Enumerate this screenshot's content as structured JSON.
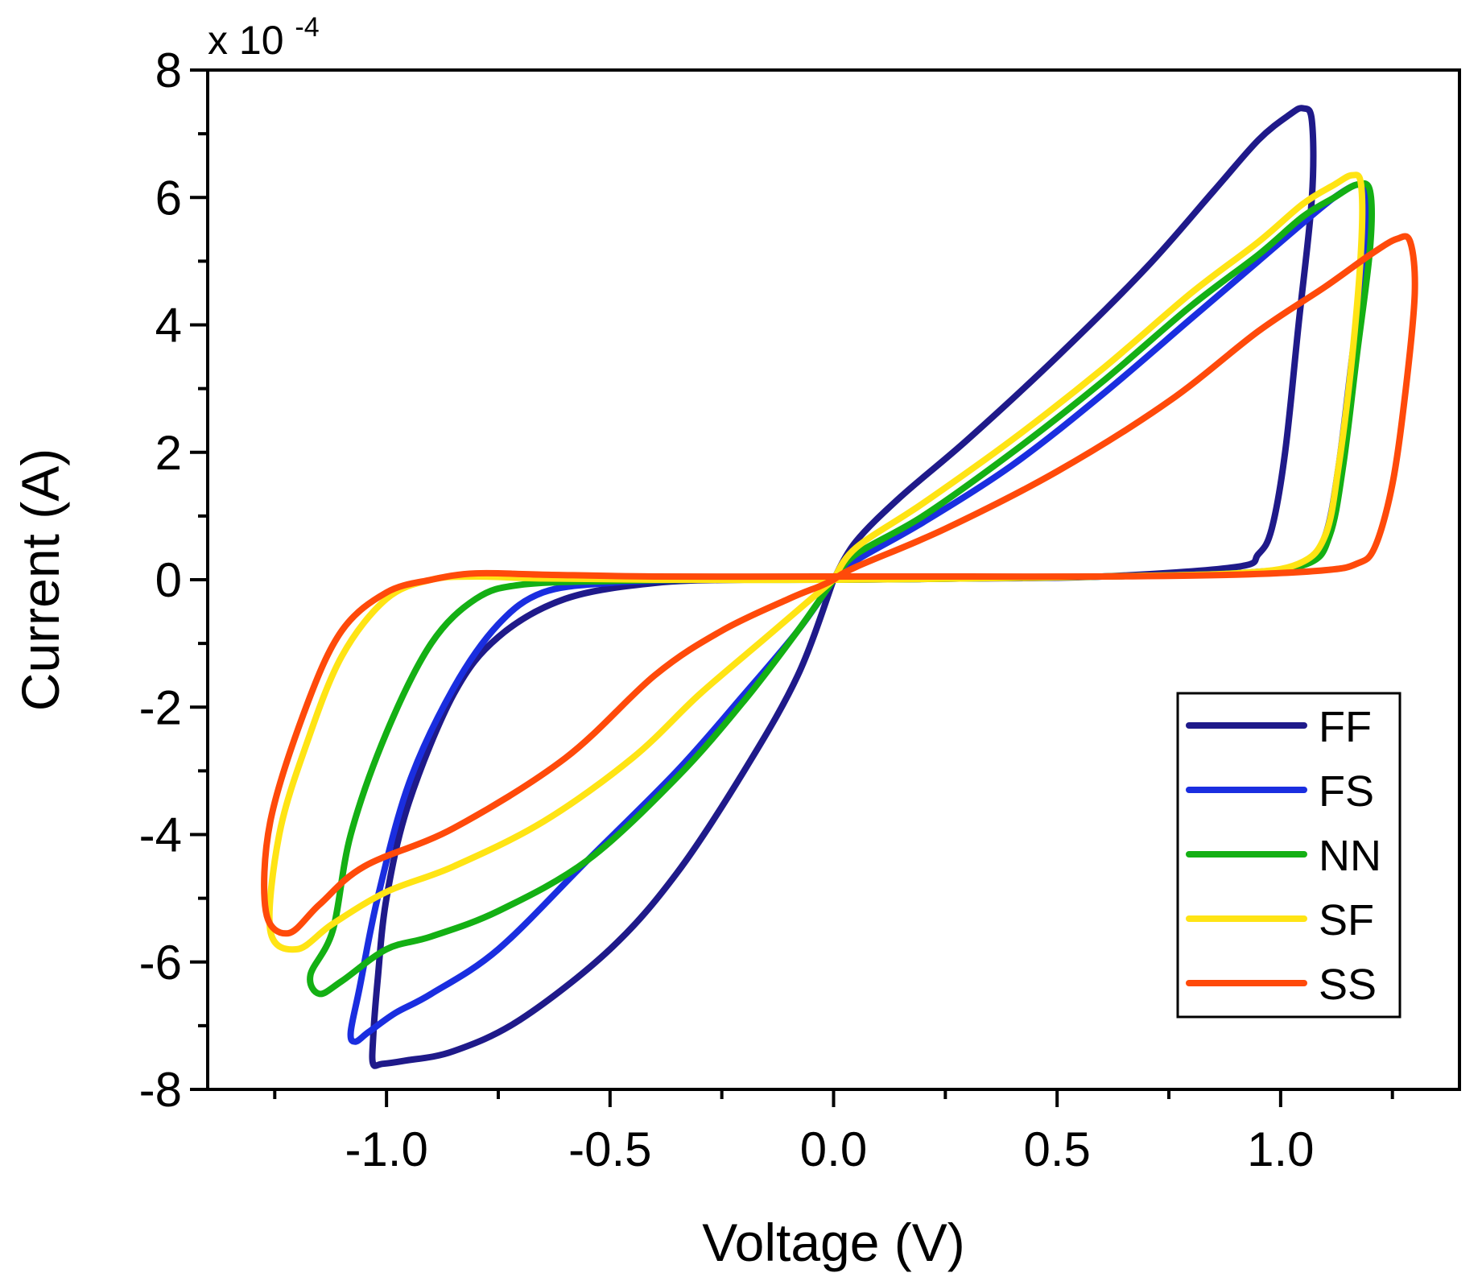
{
  "chart_data": {
    "type": "line",
    "title": "",
    "xlabel": "Voltage (V)",
    "ylabel": "Current (A)",
    "y_multiplier_label": "x 10",
    "y_multiplier_exponent": "-4",
    "xlim": [
      -1.4,
      1.4
    ],
    "ylim": [
      -8,
      8
    ],
    "x_ticks": [
      -1.0,
      -0.5,
      0.0,
      0.5,
      1.0
    ],
    "x_tick_labels": [
      "-1.0",
      "-0.5",
      "0.0",
      "0.5",
      "1.0"
    ],
    "x_minor_ticks": [
      -1.25,
      -0.75,
      -0.25,
      0.25,
      0.75,
      1.25
    ],
    "y_ticks": [
      -8,
      -6,
      -4,
      -2,
      0,
      2,
      4,
      6,
      8
    ],
    "y_tick_labels": [
      "-8",
      "-6",
      "-4",
      "-2",
      "0",
      "2",
      "4",
      "6",
      "8"
    ],
    "y_minor_ticks": [
      -7,
      -5,
      -3,
      -1,
      1,
      3,
      5,
      7
    ],
    "grid": false,
    "legend_position": "bottom-right",
    "series": [
      {
        "name": "FF",
        "color": "#1f1a8a",
        "x": [
          0,
          0.05,
          0.15,
          0.3,
          0.5,
          0.7,
          0.85,
          0.95,
          1.02,
          1.05,
          1.07,
          1.07,
          1.04,
          1.01,
          0.98,
          0.95,
          0.9,
          0.6,
          0.3,
          0.0,
          -0.2,
          -0.4,
          -0.6,
          -0.75,
          -0.85,
          -0.95,
          -1.0,
          -1.02,
          -1.03,
          -1.03,
          -1.01,
          -0.96,
          -0.85,
          -0.7,
          -0.5,
          -0.35,
          -0.2,
          -0.08,
          0
        ],
        "y": [
          0,
          0.6,
          1.3,
          2.2,
          3.5,
          4.9,
          6.1,
          6.9,
          7.3,
          7.4,
          7.2,
          6.0,
          4.0,
          2.0,
          0.8,
          0.4,
          0.2,
          0.05,
          0.02,
          0.0,
          0.0,
          -0.05,
          -0.3,
          -0.9,
          -1.8,
          -3.5,
          -5.0,
          -6.3,
          -7.2,
          -7.6,
          -7.6,
          -7.55,
          -7.4,
          -6.9,
          -5.8,
          -4.6,
          -3.0,
          -1.5,
          0
        ]
      },
      {
        "name": "FS",
        "color": "#1a2ee0",
        "x": [
          0,
          0.05,
          0.2,
          0.4,
          0.6,
          0.8,
          0.95,
          1.05,
          1.12,
          1.17,
          1.19,
          1.19,
          1.16,
          1.13,
          1.1,
          1.05,
          0.9,
          0.6,
          0.3,
          0.0,
          -0.3,
          -0.5,
          -0.65,
          -0.75,
          -0.85,
          -0.95,
          -1.02,
          -1.06,
          -1.08,
          -1.07,
          -1.04,
          -0.98,
          -0.9,
          -0.75,
          -0.55,
          -0.35,
          -0.2,
          -0.08,
          0
        ],
        "y": [
          0,
          0.3,
          0.9,
          1.8,
          2.9,
          4.1,
          5.0,
          5.6,
          6.0,
          6.2,
          6.1,
          5.2,
          3.5,
          1.8,
          0.7,
          0.25,
          0.1,
          0.05,
          0.02,
          0.0,
          0.0,
          -0.05,
          -0.2,
          -0.7,
          -1.7,
          -3.2,
          -5.0,
          -6.4,
          -7.1,
          -7.25,
          -7.1,
          -6.8,
          -6.5,
          -5.8,
          -4.4,
          -3.0,
          -1.8,
          -0.8,
          0
        ]
      },
      {
        "name": "NN",
        "color": "#14b014",
        "x": [
          0,
          0.05,
          0.2,
          0.4,
          0.6,
          0.8,
          0.95,
          1.05,
          1.12,
          1.17,
          1.2,
          1.2,
          1.17,
          1.14,
          1.11,
          1.06,
          0.9,
          0.6,
          0.3,
          0.0,
          -0.3,
          -0.5,
          -0.7,
          -0.8,
          -0.9,
          -1.0,
          -1.08,
          -1.12,
          -1.17,
          -1.15,
          -1.1,
          -1.0,
          -0.9,
          -0.75,
          -0.55,
          -0.35,
          -0.2,
          -0.08,
          0
        ],
        "y": [
          0,
          0.4,
          1.0,
          2.0,
          3.1,
          4.3,
          5.1,
          5.7,
          6.0,
          6.2,
          6.1,
          5.2,
          3.5,
          1.8,
          0.7,
          0.25,
          0.1,
          0.05,
          0.02,
          0.0,
          0.0,
          -0.02,
          -0.08,
          -0.3,
          -1.0,
          -2.4,
          -4.0,
          -5.5,
          -6.2,
          -6.5,
          -6.3,
          -5.8,
          -5.6,
          -5.2,
          -4.4,
          -3.1,
          -1.9,
          -0.8,
          0
        ]
      },
      {
        "name": "SF",
        "color": "#ffe414",
        "x": [
          0,
          0.05,
          0.2,
          0.4,
          0.6,
          0.8,
          0.95,
          1.05,
          1.12,
          1.16,
          1.18,
          1.18,
          1.16,
          1.13,
          1.1,
          1.04,
          0.9,
          0.6,
          0.3,
          0.0,
          -0.4,
          -0.65,
          -0.8,
          -0.9,
          -1.0,
          -1.1,
          -1.18,
          -1.24,
          -1.26,
          -1.2,
          -1.12,
          -1.0,
          -0.85,
          -0.65,
          -0.45,
          -0.3,
          -0.15,
          -0.05,
          0
        ],
        "y": [
          0,
          0.5,
          1.2,
          2.2,
          3.3,
          4.5,
          5.3,
          5.9,
          6.2,
          6.35,
          6.2,
          5.2,
          3.5,
          1.8,
          0.7,
          0.25,
          0.1,
          0.05,
          0.02,
          0.0,
          0.0,
          0.02,
          0.05,
          0.0,
          -0.3,
          -1.2,
          -2.6,
          -4.0,
          -5.5,
          -5.8,
          -5.4,
          -4.9,
          -4.5,
          -3.8,
          -2.8,
          -1.8,
          -0.9,
          -0.3,
          0
        ]
      },
      {
        "name": "SS",
        "color": "#ff4a0a",
        "x": [
          0,
          0.05,
          0.25,
          0.5,
          0.75,
          0.95,
          1.1,
          1.2,
          1.26,
          1.29,
          1.3,
          1.28,
          1.25,
          1.21,
          1.17,
          1.1,
          0.9,
          0.6,
          0.3,
          0.0,
          -0.4,
          -0.65,
          -0.8,
          -0.9,
          -1.0,
          -1.1,
          -1.18,
          -1.26,
          -1.27,
          -1.22,
          -1.15,
          -1.05,
          -0.85,
          -0.6,
          -0.4,
          -0.25,
          -0.1,
          -0.03,
          0
        ],
        "y": [
          0,
          0.2,
          0.8,
          1.7,
          2.8,
          3.9,
          4.6,
          5.1,
          5.35,
          5.3,
          4.5,
          3.0,
          1.5,
          0.5,
          0.25,
          0.15,
          0.08,
          0.05,
          0.05,
          0.05,
          0.05,
          0.08,
          0.1,
          0.0,
          -0.2,
          -0.8,
          -2.0,
          -3.8,
          -5.2,
          -5.55,
          -5.1,
          -4.5,
          -3.9,
          -2.8,
          -1.5,
          -0.8,
          -0.3,
          -0.1,
          0
        ]
      }
    ]
  }
}
